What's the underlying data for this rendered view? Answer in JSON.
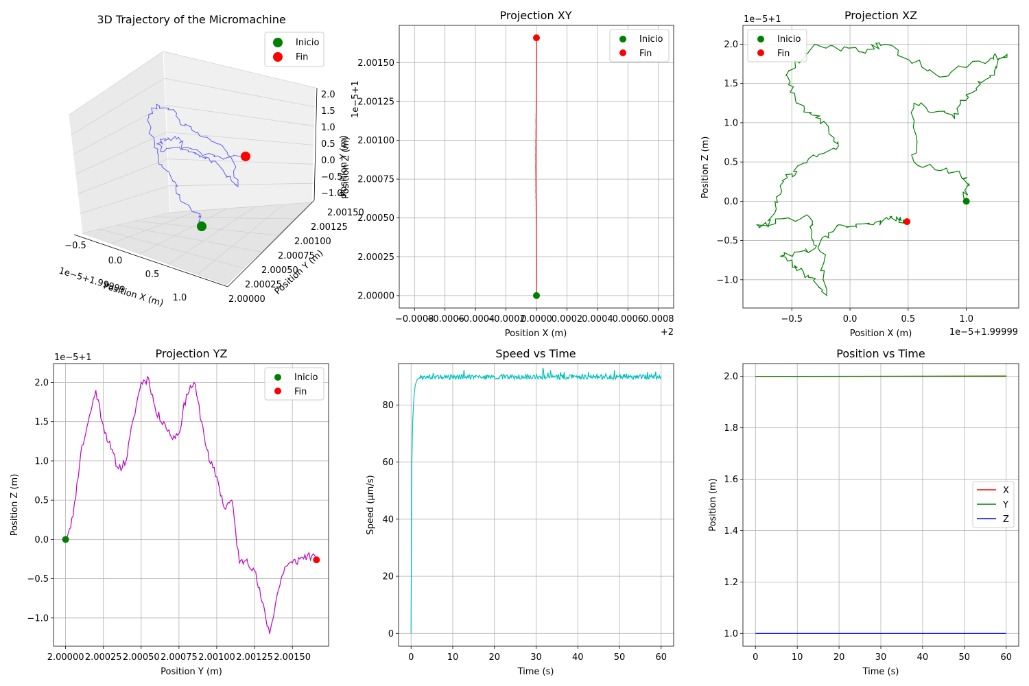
{
  "chart_data": [
    {
      "id": "traj3d",
      "type": "line3d",
      "title": "3D Trajectory of the Micromachine",
      "xlabel": "Position X (m)",
      "ylabel": "Position Y (m)",
      "zlabel": "Position Z (m)",
      "x_offset_text": "1e−5+1.99999",
      "z_offset_text": "1e−5+1",
      "x_ticks": [
        "−0.5",
        "0.0",
        "0.5",
        "1.0"
      ],
      "y_ticks": [
        "2.00000",
        "2.00025",
        "2.00050",
        "2.00075",
        "2.00100",
        "2.00125",
        "2.00150"
      ],
      "z_ticks": [
        "−1.0",
        "−0.5",
        "0.0",
        "0.5",
        "1.0",
        "1.5",
        "2.0"
      ],
      "series_color": "#4444ee",
      "legend": [
        {
          "label": "Inicio",
          "color": "#008000"
        },
        {
          "label": "Fin",
          "color": "#ff0000"
        }
      ],
      "legend_loc": "upper right"
    },
    {
      "id": "projxy",
      "type": "line",
      "title": "Projection XY",
      "xlabel": "Position X (m)",
      "ylabel": "Position Y (m)",
      "x_offset_text": "+2",
      "xlim": [
        -0.0009,
        0.0009
      ],
      "ylim": [
        1.99992,
        2.00174
      ],
      "x_ticks": [
        -0.0008,
        -0.0006,
        -0.0004,
        -0.0002,
        0.0,
        0.0002,
        0.0004,
        0.0006,
        0.0008
      ],
      "x_tick_labels": [
        "−0.0008",
        "−0.0006",
        "−0.0004",
        "−0.0002",
        "0.0000",
        "0.0002",
        "0.0004",
        "0.0006",
        "0.0008"
      ],
      "y_ticks": [
        2.0,
        2.00025,
        2.0005,
        2.00075,
        2.001,
        2.00125,
        2.0015
      ],
      "y_tick_labels": [
        "2.00000",
        "2.00025",
        "2.00050",
        "2.00075",
        "2.00100",
        "2.00125",
        "2.00150"
      ],
      "grid": true,
      "series_color": "#ff0000",
      "start": [
        0.0,
        2.0
      ],
      "end": [
        0.0,
        2.00166
      ],
      "legend": [
        {
          "label": "Inicio",
          "color": "#008000"
        },
        {
          "label": "Fin",
          "color": "#ff0000"
        }
      ],
      "legend_loc": "upper right"
    },
    {
      "id": "projxz",
      "type": "line",
      "title": "Projection XZ",
      "xlabel": "Position X (m)",
      "ylabel": "Position Z (m)",
      "x_offset_text": "1e−5+1.99999",
      "y_offset_text": "1e−5+1",
      "xlim": [
        -0.92,
        1.45
      ],
      "ylim": [
        -1.36,
        2.24
      ],
      "x_ticks": [
        -0.5,
        0.0,
        0.5,
        1.0
      ],
      "x_tick_labels": [
        "−0.5",
        "0.0",
        "0.5",
        "1.0"
      ],
      "y_ticks": [
        -1.0,
        -0.5,
        0.0,
        0.5,
        1.0,
        1.5,
        2.0
      ],
      "y_tick_labels": [
        "−1.0",
        "−0.5",
        "0.0",
        "0.5",
        "1.0",
        "1.5",
        "2.0"
      ],
      "grid": true,
      "series_color": "#008000",
      "start": [
        1.0,
        0.0
      ],
      "end": [
        0.49,
        -0.26
      ],
      "legend": [
        {
          "label": "Inicio",
          "color": "#008000"
        },
        {
          "label": "Fin",
          "color": "#ff0000"
        }
      ],
      "legend_loc": "upper left"
    },
    {
      "id": "projyz",
      "type": "line",
      "title": "Projection YZ",
      "xlabel": "Position Y (m)",
      "ylabel": "Position Z (m)",
      "y_offset_text": "1e−5+1",
      "xlim": [
        1.99992,
        2.00174
      ],
      "ylim": [
        -1.36,
        2.24
      ],
      "x_ticks": [
        2.0,
        2.00025,
        2.0005,
        2.00075,
        2.001,
        2.00125,
        2.0015
      ],
      "x_tick_labels": [
        "2.00000",
        "2.00025",
        "2.00050",
        "2.00075",
        "2.00100",
        "2.00125",
        "2.00150"
      ],
      "y_ticks": [
        -1.0,
        -0.5,
        0.0,
        0.5,
        1.0,
        1.5,
        2.0
      ],
      "y_tick_labels": [
        "−1.0",
        "−0.5",
        "0.0",
        "0.5",
        "1.0",
        "1.5",
        "2.0"
      ],
      "grid": true,
      "series_color": "#bf00bf",
      "start": [
        2.0,
        0.0
      ],
      "end": [
        2.00166,
        -0.26
      ],
      "x": [
        2.0,
        2.00005,
        2.0001,
        2.00015,
        2.0002,
        2.00025,
        2.0003,
        2.00035,
        2.0004,
        2.00045,
        2.0005,
        2.00055,
        2.0006,
        2.00065,
        2.0007,
        2.00075,
        2.0008,
        2.00085,
        2.0009,
        2.00095,
        2.001,
        2.00105,
        2.0011,
        2.00115,
        2.0012,
        2.00125,
        2.0013,
        2.00135,
        2.0014,
        2.00145,
        2.0015,
        2.00155,
        2.0016,
        2.00166
      ],
      "y": [
        0.0,
        0.3,
        1.1,
        1.5,
        1.9,
        1.45,
        1.15,
        0.9,
        1.0,
        1.55,
        2.0,
        2.05,
        1.6,
        1.5,
        1.3,
        1.35,
        1.85,
        2.0,
        1.5,
        1.0,
        0.8,
        0.4,
        0.5,
        -0.3,
        -0.25,
        -0.4,
        -0.8,
        -1.2,
        -0.7,
        -0.35,
        -0.3,
        -0.25,
        -0.2,
        -0.26
      ],
      "legend": [
        {
          "label": "Inicio",
          "color": "#008000"
        },
        {
          "label": "Fin",
          "color": "#ff0000"
        }
      ],
      "legend_loc": "upper right"
    },
    {
      "id": "speed",
      "type": "line",
      "title": "Speed vs Time",
      "xlabel": "Time (s)",
      "ylabel": "Speed (μm/s)",
      "xlim": [
        -3,
        63
      ],
      "ylim": [
        -4.5,
        94.5
      ],
      "x_ticks": [
        0,
        10,
        20,
        30,
        40,
        50,
        60
      ],
      "x_tick_labels": [
        "0",
        "10",
        "20",
        "30",
        "40",
        "50",
        "60"
      ],
      "y_ticks": [
        0,
        20,
        40,
        60,
        80
      ],
      "y_tick_labels": [
        "0",
        "20",
        "40",
        "60",
        "80"
      ],
      "grid": true,
      "series_color": "#00bfbf",
      "x": [
        0,
        0.1,
        0.2,
        0.4,
        0.7,
        1.0,
        1.5,
        2,
        3,
        4,
        5,
        10,
        20,
        30,
        40,
        44,
        50,
        60
      ],
      "y": [
        0,
        30,
        60,
        75,
        83,
        87,
        89,
        89.5,
        90,
        90,
        90,
        90,
        90,
        90,
        90,
        90,
        90,
        90
      ]
    },
    {
      "id": "postime",
      "type": "line",
      "title": "Position vs Time",
      "xlabel": "Time (s)",
      "ylabel": "Position (m)",
      "xlim": [
        -3,
        63
      ],
      "ylim": [
        0.95,
        2.05
      ],
      "x_ticks": [
        0,
        10,
        20,
        30,
        40,
        50,
        60
      ],
      "x_tick_labels": [
        "0",
        "10",
        "20",
        "30",
        "40",
        "50",
        "60"
      ],
      "y_ticks": [
        1.0,
        1.2,
        1.4,
        1.6,
        1.8,
        2.0
      ],
      "y_tick_labels": [
        "1.0",
        "1.2",
        "1.4",
        "1.6",
        "1.8",
        "2.0"
      ],
      "grid": true,
      "series": [
        {
          "name": "X",
          "color": "#ff0000",
          "x": [
            0,
            60
          ],
          "y": [
            2.0,
            2.0
          ]
        },
        {
          "name": "Y",
          "color": "#008000",
          "x": [
            0,
            60
          ],
          "y": [
            2.0,
            2.0017
          ]
        },
        {
          "name": "Z",
          "color": "#0000ff",
          "x": [
            0,
            60
          ],
          "y": [
            1.0,
            1.0
          ]
        }
      ],
      "legend_loc": "center right"
    }
  ]
}
